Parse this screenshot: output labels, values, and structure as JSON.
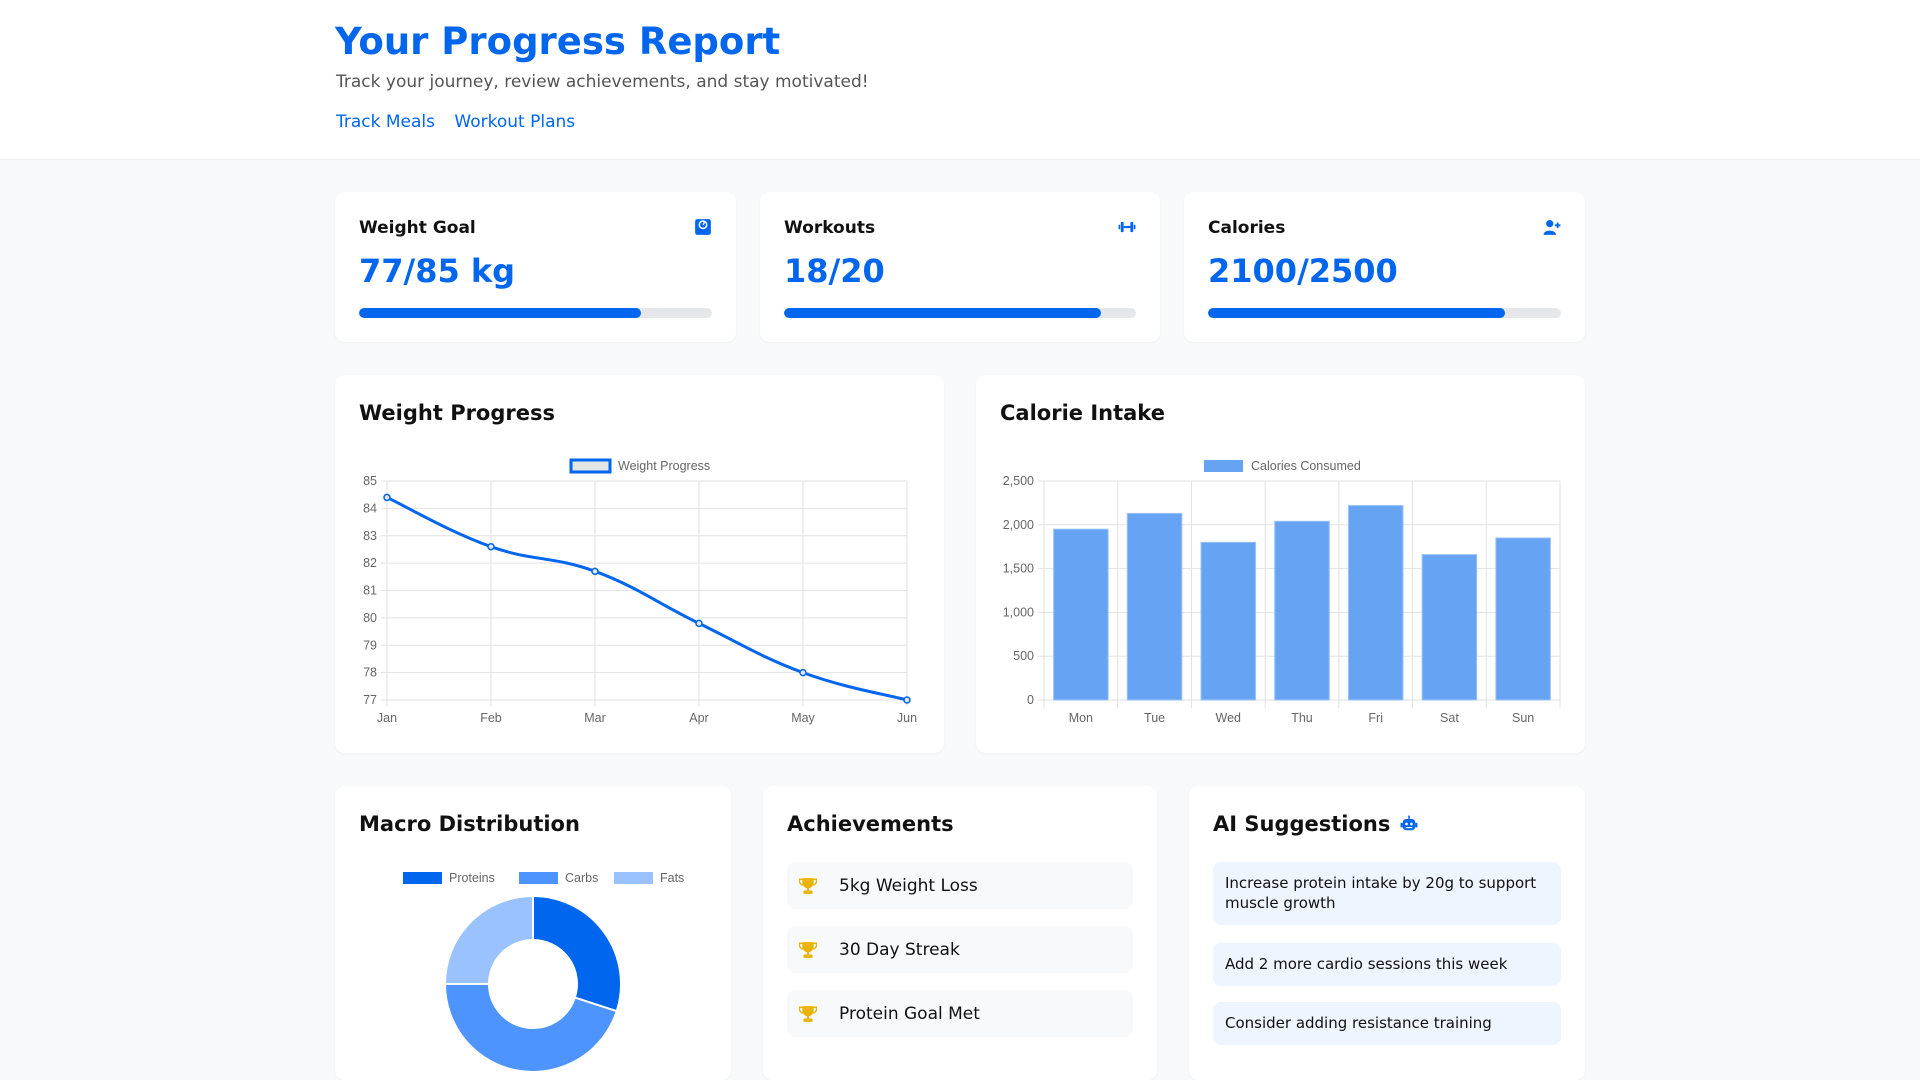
{
  "header": {
    "title": "Your Progress Report",
    "subtitle": "Track your journey, review achievements, and stay motivated!",
    "links": [
      "Track Meals",
      "Workout Plans"
    ]
  },
  "colors": {
    "accent": "#0066ee",
    "bar": "#66a3f2",
    "trophy": "#eab308",
    "track": "#e5e7eb"
  },
  "stats": [
    {
      "title": "Weight Goal",
      "value": "77/85 kg",
      "progress_percent": 80,
      "icon": "weight-scale-icon"
    },
    {
      "title": "Workouts",
      "value": "18/20",
      "progress_percent": 90,
      "icon": "dumbbell-icon"
    },
    {
      "title": "Calories",
      "value": "2100/2500",
      "progress_percent": 84,
      "icon": "user-plus-icon"
    }
  ],
  "weight_card": {
    "title": "Weight Progress"
  },
  "calorie_card": {
    "title": "Calorie Intake"
  },
  "macro_card": {
    "title": "Macro Distribution"
  },
  "achievements": {
    "title": "Achievements",
    "items": [
      "5kg Weight Loss",
      "30 Day Streak",
      "Protein Goal Met"
    ],
    "icon": "trophy-icon"
  },
  "ai": {
    "title": "AI Suggestions",
    "icon": "robot-icon",
    "items": [
      "Increase protein intake by 20g to support muscle growth",
      "Add 2 more cardio sessions this week",
      "Consider adding resistance training"
    ]
  },
  "chart_data": [
    {
      "type": "line",
      "legend": [
        "Weight Progress"
      ],
      "legend_placement": "top",
      "categories": [
        "Jan",
        "Feb",
        "Mar",
        "Apr",
        "May",
        "Jun"
      ],
      "series": [
        {
          "name": "Weight Progress",
          "values": [
            84.4,
            82.6,
            81.7,
            79.8,
            78.0,
            77.0
          ]
        }
      ],
      "ylim": [
        77,
        85
      ],
      "yticks": [
        "85",
        "84",
        "83",
        "82",
        "81",
        "80",
        "79",
        "78",
        "77"
      ],
      "grid": true
    },
    {
      "type": "bar",
      "legend": [
        "Calories Consumed"
      ],
      "legend_placement": "top",
      "categories": [
        "Mon",
        "Tue",
        "Wed",
        "Thu",
        "Fri",
        "Sat",
        "Sun"
      ],
      "series": [
        {
          "name": "Calories Consumed",
          "values": [
            1950,
            2130,
            1800,
            2040,
            2220,
            1660,
            1850
          ]
        }
      ],
      "ylim": [
        0,
        2500
      ],
      "yticks": [
        "2,500",
        "2,000",
        "1,500",
        "1,000",
        "500",
        "0"
      ],
      "grid": true
    },
    {
      "type": "pie",
      "donut": true,
      "legend_placement": "top",
      "labels": [
        "Proteins",
        "Carbs",
        "Fats"
      ],
      "values": [
        30,
        45,
        25
      ],
      "colors": [
        "#0066ee",
        "#4d94ff",
        "#99c2ff"
      ]
    }
  ]
}
